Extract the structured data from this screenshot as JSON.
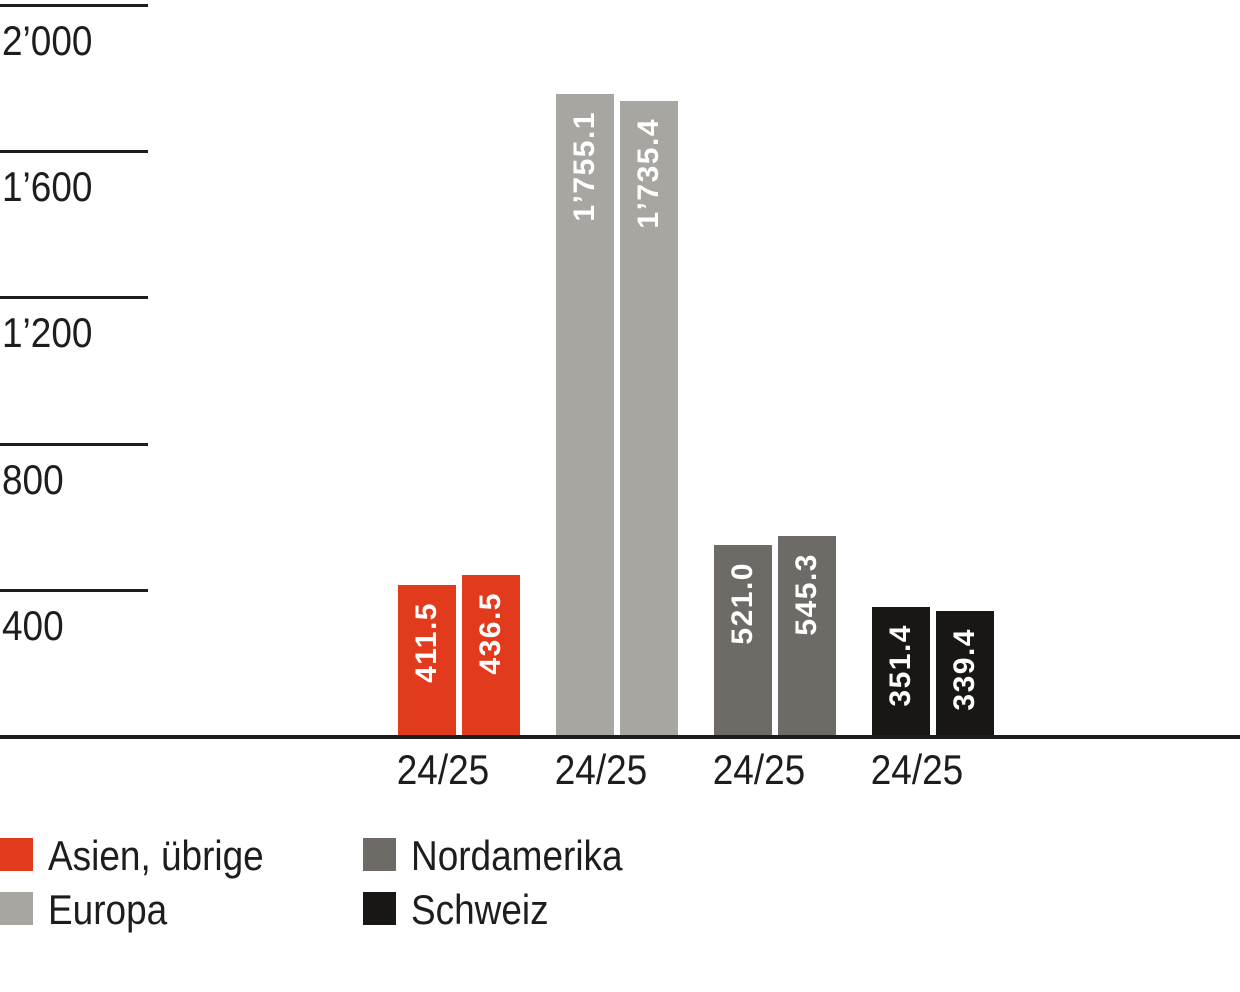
{
  "chart_data": {
    "type": "bar",
    "title": "",
    "background": "#ffffff",
    "text_color": "#1d1d1b",
    "grid": "left-tick-stubs-only",
    "legend_position": "bottom-left-two-columns",
    "y_axis": {
      "min": 0,
      "max": 2000,
      "ticks": [
        2000,
        1600,
        1200,
        800,
        400
      ],
      "tick_labels": [
        "2’000",
        "1’600",
        "1’200",
        "800",
        "400"
      ]
    },
    "groups": [
      {
        "name": "Asien, übrige",
        "color": "#e23a1d",
        "x_label": "24/25",
        "values": [
          411.5,
          436.5
        ],
        "value_labels": [
          "411.5",
          "436.5"
        ]
      },
      {
        "name": "Europa",
        "color": "#a8a6a1",
        "x_label": "24/25",
        "values": [
          1755.1,
          1735.4
        ],
        "value_labels": [
          "1’755.1",
          "1’735.4"
        ]
      },
      {
        "name": "Nordamerika",
        "color": "#6e6b67",
        "x_label": "24/25",
        "values": [
          521.0,
          545.3
        ],
        "value_labels": [
          "521.0",
          "545.3"
        ]
      },
      {
        "name": "Schweiz",
        "color": "#191713",
        "x_label": "24/25",
        "values": [
          351.4,
          339.4
        ],
        "value_labels": [
          "351.4",
          "339.4"
        ]
      }
    ],
    "legend": [
      {
        "label": "Asien, übrige",
        "color": "#e23a1d"
      },
      {
        "label": "Europa",
        "color": "#a8a6a1"
      },
      {
        "label": "Nordamerika",
        "color": "#6e6b67"
      },
      {
        "label": "Schweiz",
        "color": "#191713"
      }
    ]
  }
}
